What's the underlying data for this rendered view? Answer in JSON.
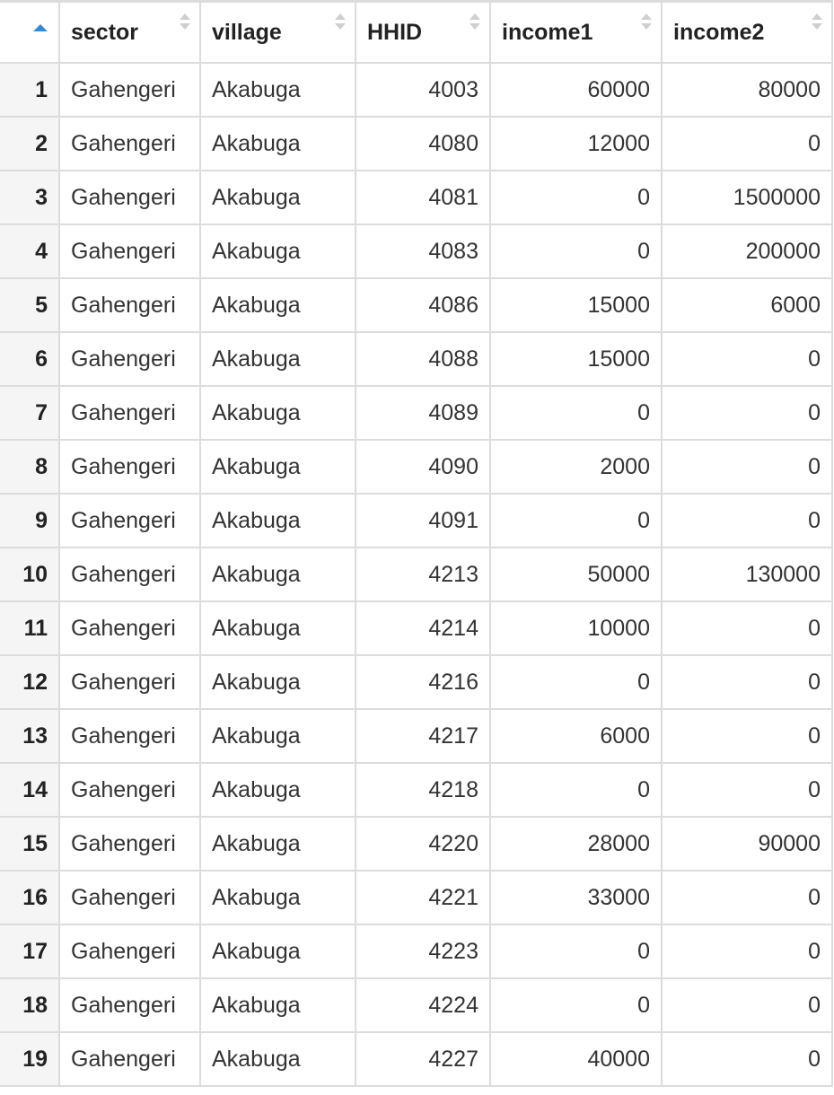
{
  "columns": [
    "sector",
    "village",
    "HHID",
    "income1",
    "income2"
  ],
  "rows": [
    {
      "idx": "1",
      "sector": "Gahengeri",
      "village": "Akabuga",
      "hhid": "4003",
      "income1": "60000",
      "income2": "80000"
    },
    {
      "idx": "2",
      "sector": "Gahengeri",
      "village": "Akabuga",
      "hhid": "4080",
      "income1": "12000",
      "income2": "0"
    },
    {
      "idx": "3",
      "sector": "Gahengeri",
      "village": "Akabuga",
      "hhid": "4081",
      "income1": "0",
      "income2": "1500000"
    },
    {
      "idx": "4",
      "sector": "Gahengeri",
      "village": "Akabuga",
      "hhid": "4083",
      "income1": "0",
      "income2": "200000"
    },
    {
      "idx": "5",
      "sector": "Gahengeri",
      "village": "Akabuga",
      "hhid": "4086",
      "income1": "15000",
      "income2": "6000"
    },
    {
      "idx": "6",
      "sector": "Gahengeri",
      "village": "Akabuga",
      "hhid": "4088",
      "income1": "15000",
      "income2": "0"
    },
    {
      "idx": "7",
      "sector": "Gahengeri",
      "village": "Akabuga",
      "hhid": "4089",
      "income1": "0",
      "income2": "0"
    },
    {
      "idx": "8",
      "sector": "Gahengeri",
      "village": "Akabuga",
      "hhid": "4090",
      "income1": "2000",
      "income2": "0"
    },
    {
      "idx": "9",
      "sector": "Gahengeri",
      "village": "Akabuga",
      "hhid": "4091",
      "income1": "0",
      "income2": "0"
    },
    {
      "idx": "10",
      "sector": "Gahengeri",
      "village": "Akabuga",
      "hhid": "4213",
      "income1": "50000",
      "income2": "130000"
    },
    {
      "idx": "11",
      "sector": "Gahengeri",
      "village": "Akabuga",
      "hhid": "4214",
      "income1": "10000",
      "income2": "0"
    },
    {
      "idx": "12",
      "sector": "Gahengeri",
      "village": "Akabuga",
      "hhid": "4216",
      "income1": "0",
      "income2": "0"
    },
    {
      "idx": "13",
      "sector": "Gahengeri",
      "village": "Akabuga",
      "hhid": "4217",
      "income1": "6000",
      "income2": "0"
    },
    {
      "idx": "14",
      "sector": "Gahengeri",
      "village": "Akabuga",
      "hhid": "4218",
      "income1": "0",
      "income2": "0"
    },
    {
      "idx": "15",
      "sector": "Gahengeri",
      "village": "Akabuga",
      "hhid": "4220",
      "income1": "28000",
      "income2": "90000"
    },
    {
      "idx": "16",
      "sector": "Gahengeri",
      "village": "Akabuga",
      "hhid": "4221",
      "income1": "33000",
      "income2": "0"
    },
    {
      "idx": "17",
      "sector": "Gahengeri",
      "village": "Akabuga",
      "hhid": "4223",
      "income1": "0",
      "income2": "0"
    },
    {
      "idx": "18",
      "sector": "Gahengeri",
      "village": "Akabuga",
      "hhid": "4224",
      "income1": "0",
      "income2": "0"
    },
    {
      "idx": "19",
      "sector": "Gahengeri",
      "village": "Akabuga",
      "hhid": "4227",
      "income1": "40000",
      "income2": "0"
    }
  ],
  "colors": {
    "sort_active": "#2f8bd8",
    "sort_inactive": "#cfcfcf",
    "grid_line": "#dcdcdc",
    "index_bg": "#f5f5f5"
  }
}
